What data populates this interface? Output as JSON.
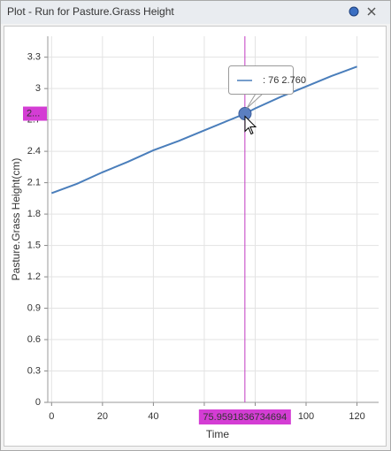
{
  "window": {
    "title": "Plot - Run for Pasture.Grass Height"
  },
  "chart_data": {
    "type": "line",
    "x_label": "Time",
    "y_label": "Pasture.Grass Height(cm)",
    "x": [
      0,
      10,
      20,
      30,
      40,
      50,
      60,
      70,
      76,
      80,
      90,
      100,
      110,
      120
    ],
    "values": [
      2.0,
      2.09,
      2.2,
      2.3,
      2.41,
      2.5,
      2.6,
      2.7,
      2.76,
      2.81,
      2.92,
      3.02,
      3.12,
      3.21
    ],
    "color": "#4a7ebb",
    "xlim": [
      -1.5,
      128.5
    ],
    "xticks": [
      0,
      20,
      40,
      60,
      80,
      100,
      120
    ],
    "ylim": [
      0,
      3.5
    ],
    "yticks": [
      0,
      0.3,
      0.6,
      0.9,
      1.2,
      1.5,
      1.8,
      2.1,
      2.4,
      2.7,
      3,
      3.3
    ],
    "grid": true,
    "crosshair": {
      "x": 75.9591836734694,
      "y_label": "2..."
    },
    "tooltip": {
      "text": ": 76 2.760",
      "point": 8
    }
  }
}
